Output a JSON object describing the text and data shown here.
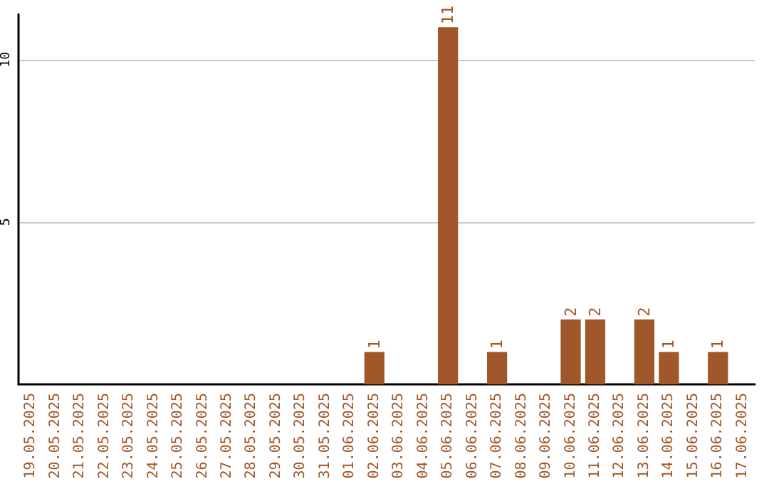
{
  "chart_data": {
    "type": "bar",
    "categories": [
      "19.05.2025",
      "20.05.2025",
      "21.05.2025",
      "22.05.2025",
      "23.05.2025",
      "24.05.2025",
      "25.05.2025",
      "26.05.2025",
      "27.05.2025",
      "28.05.2025",
      "29.05.2025",
      "30.05.2025",
      "31.05.2025",
      "01.06.2025",
      "02.06.2025",
      "03.06.2025",
      "04.06.2025",
      "05.06.2025",
      "06.06.2025",
      "07.06.2025",
      "08.06.2025",
      "09.06.2025",
      "10.06.2025",
      "11.06.2025",
      "12.06.2025",
      "13.06.2025",
      "14.06.2025",
      "15.06.2025",
      "16.06.2025",
      "17.06.2025"
    ],
    "values": [
      0,
      0,
      0,
      0,
      0,
      0,
      0,
      0,
      0,
      0,
      0,
      0,
      0,
      0,
      1,
      0,
      0,
      11,
      0,
      1,
      0,
      0,
      2,
      2,
      0,
      2,
      1,
      0,
      1,
      0
    ],
    "value_labels": [
      null,
      null,
      null,
      null,
      null,
      null,
      null,
      null,
      null,
      null,
      null,
      null,
      null,
      null,
      "1",
      null,
      null,
      "11",
      null,
      "1",
      null,
      null,
      "2",
      "2",
      null,
      "2",
      "1",
      null,
      "1",
      null
    ],
    "color": "#a0572a",
    "ylim": [
      0,
      11.4
    ],
    "yticks": [
      5,
      10
    ],
    "grid": "y"
  }
}
